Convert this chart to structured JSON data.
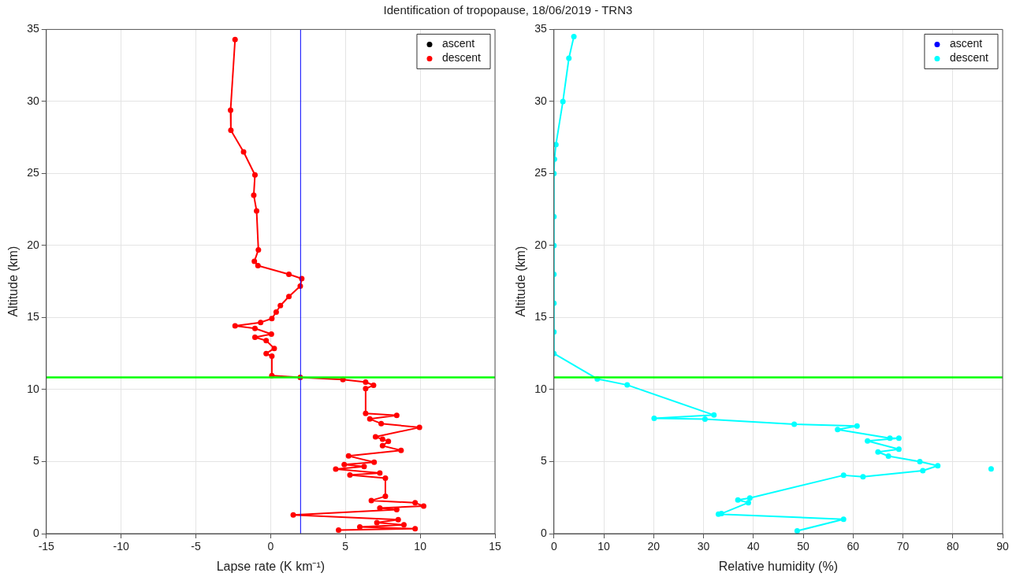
{
  "chart_data": [
    {
      "type": "line",
      "title": "Identification of tropopause, 18/06/2019 - TRN3",
      "xlabel": "Lapse rate (K km⁻¹)",
      "ylabel": "Altitude (km)",
      "xlim": [
        -15,
        15
      ],
      "xticks": [
        -15,
        -10,
        -5,
        0,
        5,
        10,
        15
      ],
      "ylim": [
        0,
        35
      ],
      "yticks": [
        0,
        5,
        10,
        15,
        20,
        25,
        30,
        35
      ],
      "grid": true,
      "legend": "top right",
      "marker": "circle",
      "series": [
        {
          "name": "ascent",
          "color": "#000000"
        },
        {
          "name": "descent",
          "color": "#ff0000",
          "x": [
            -2.38,
            -2.68,
            -2.66,
            -1.81,
            -1.05,
            -1.13,
            -0.94,
            -0.82,
            -1.09,
            -0.85,
            1.22,
            2.08,
            1.98,
            1.22,
            0.65,
            0.37,
            0.08,
            -0.67,
            -2.38,
            -1.05,
            0.05,
            -1.05,
            -0.3,
            0.24,
            -0.3,
            0.08,
            0.08,
            1.98,
            4.83,
            6.35,
            6.88,
            6.35,
            6.35,
            8.43,
            6.63,
            7.39,
            9.95,
            7.01,
            7.48,
            7.87,
            7.48,
            8.72,
            5.21,
            6.92,
            4.92,
            6.25,
            4.35,
            7.3,
            5.3,
            7.67,
            7.67,
            6.73,
            9.66,
            10.23,
            7.3,
            8.43,
            1.51,
            8.53,
            7.1,
            8.91,
            5.96,
            9.66,
            4.54
          ],
          "values": [
            34.3,
            29.4,
            28.0,
            26.5,
            24.9,
            23.5,
            22.4,
            19.7,
            18.9,
            18.6,
            18.0,
            17.7,
            17.18,
            16.46,
            15.83,
            15.38,
            14.93,
            14.66,
            14.42,
            14.25,
            13.85,
            13.63,
            13.4,
            12.86,
            12.5,
            12.32,
            10.97,
            10.84,
            10.7,
            10.52,
            10.3,
            10.06,
            8.35,
            8.21,
            7.96,
            7.64,
            7.37,
            6.72,
            6.55,
            6.41,
            6.1,
            5.78,
            5.39,
            4.96,
            4.79,
            4.66,
            4.48,
            4.21,
            4.07,
            3.85,
            2.59,
            2.3,
            2.14,
            1.91,
            1.78,
            1.66,
            1.3,
            0.97,
            0.76,
            0.61,
            0.47,
            0.34,
            0.25
          ]
        }
      ],
      "ref_lines": [
        {
          "axis": "x",
          "value": 2,
          "color": "#0000ff"
        },
        {
          "axis": "y",
          "value": 10.85,
          "color": "#00ff00"
        }
      ]
    },
    {
      "type": "line",
      "xlabel": "Relative humidity (%)",
      "ylabel": "Altitude (km)",
      "xlim": [
        0,
        90
      ],
      "xticks": [
        0,
        10,
        20,
        30,
        40,
        50,
        60,
        70,
        80,
        90
      ],
      "ylim": [
        0,
        35
      ],
      "yticks": [
        0,
        5,
        10,
        15,
        20,
        25,
        30,
        35
      ],
      "grid": true,
      "legend": "top right",
      "marker": "circle",
      "series": [
        {
          "name": "ascent",
          "color": "#0000ff"
        },
        {
          "name": "descent",
          "color": "#00ffff",
          "x": [
            4.0,
            3.0,
            1.8,
            0.4,
            0.1,
            0,
            0,
            0,
            0,
            0,
            0,
            0,
            8.7,
            14.7,
            32.1,
            20.1,
            30.3,
            48.2,
            60.8,
            56.9,
            67.4,
            69.2,
            62.9,
            69.2,
            65.0,
            67.1,
            73.4,
            77.0,
            74.0,
            62.0,
            58.1,
            39.3,
            36.9,
            39.0,
            33.6,
            33.0,
            58.1,
            48.8,
            null,
            87.7
          ],
          "values": [
            34.5,
            33,
            30,
            27,
            26,
            25,
            22,
            20,
            18,
            16,
            14,
            12.5,
            10.74,
            10.32,
            8.23,
            8.0,
            7.95,
            7.6,
            7.47,
            7.22,
            6.62,
            6.62,
            6.43,
            5.86,
            5.67,
            5.38,
            5.0,
            4.71,
            4.37,
            3.95,
            4.05,
            2.47,
            2.34,
            2.15,
            1.39,
            1.35,
            1.0,
            0.19,
            null,
            4.49
          ]
        }
      ],
      "ref_lines": [
        {
          "axis": "y",
          "value": 10.85,
          "color": "#00ff00"
        }
      ]
    }
  ]
}
